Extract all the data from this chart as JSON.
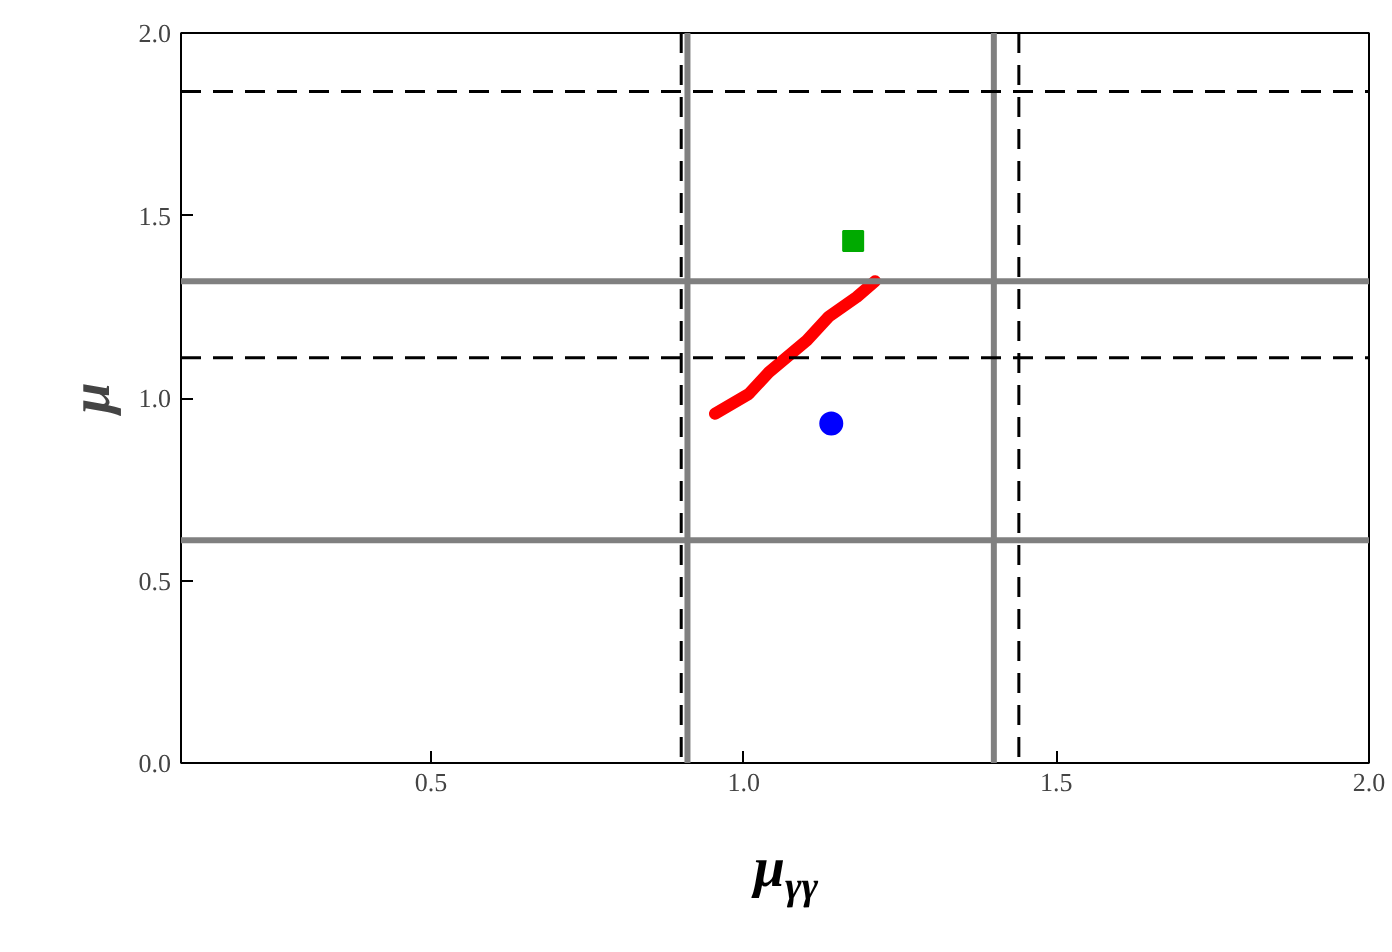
{
  "chart_data": {
    "type": "scatter",
    "xlabel": "μ$_{γγ}$",
    "ylabel": "μ",
    "xlim": [
      0.1,
      2.0
    ],
    "ylim": [
      0.0,
      2.0
    ],
    "xticks": [
      0.5,
      {
        "value": 1,
        "label": "1.0"
      },
      1.5,
      {
        "value": 2,
        "label": "2.0"
      }
    ],
    "yticks": [
      {
        "value": 0,
        "label": "0.0"
      },
      0.5,
      {
        "value": 1,
        "label": "1.0"
      },
      1.5,
      {
        "value": 2,
        "label": "2.0"
      }
    ],
    "grid": false,
    "series": [
      {
        "type": "line",
        "color": "#ff0000",
        "x": [
          0.954,
          1.008,
          1.04,
          1.101,
          1.136,
          1.181,
          1.21
        ],
        "values": [
          0.957,
          1.011,
          1.07,
          1.158,
          1.223,
          1.277,
          1.32
        ]
      },
      {
        "marker": "circle",
        "color": "#0000ff",
        "x": [
          1.14
        ],
        "values": [
          0.93
        ]
      },
      {
        "marker": "square",
        "color": "#00aa00",
        "x": [
          1.175
        ],
        "values": [
          1.43
        ]
      }
    ],
    "ref_lines": [
      {
        "axis": "x",
        "value": 0.91,
        "color": "#808080",
        "line_style": "solid"
      },
      {
        "axis": "x",
        "value": 1.4,
        "color": "#808080",
        "line_style": "solid"
      },
      {
        "axis": "y",
        "value": 1.32,
        "color": "#808080",
        "line_style": "solid"
      },
      {
        "axis": "y",
        "value": 0.61,
        "color": "#808080",
        "line_style": "solid"
      },
      {
        "axis": "x",
        "value": 0.9,
        "color": "#000000",
        "line_style": "dashed"
      },
      {
        "axis": "x",
        "value": 1.44,
        "color": "#000000",
        "line_style": "dashed"
      },
      {
        "axis": "y",
        "value": 1.84,
        "color": "#000000",
        "line_style": "dashed"
      },
      {
        "axis": "y",
        "value": 1.11,
        "color": "#000000",
        "line_style": "dashed"
      }
    ]
  }
}
